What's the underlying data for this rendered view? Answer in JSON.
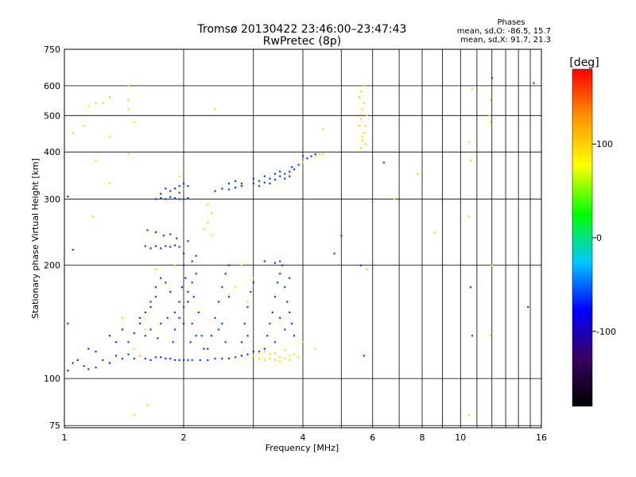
{
  "chart_data": {
    "type": "scatter",
    "title": "Tromsø 20130422 23:46:00–23:47:43",
    "subtitle": "RwPretec (8p)",
    "xlabel": "Frequency [MHz]",
    "ylabel": "Stationary phase Virtual Height [km]",
    "x_scale": "log",
    "y_scale": "log",
    "xlim": [
      1,
      16
    ],
    "ylim": [
      74,
      750
    ],
    "x_ticks": [
      1,
      2,
      4,
      6,
      8,
      10,
      16
    ],
    "x_tick_labels": [
      "1",
      "2",
      "4",
      "6",
      "8",
      "10",
      "16"
    ],
    "x_gridlines": [
      1,
      2,
      3,
      4,
      5,
      6,
      7,
      8,
      9,
      10,
      11,
      12,
      13,
      14,
      15,
      16
    ],
    "y_ticks": [
      75,
      100,
      200,
      300,
      400,
      500,
      600,
      750
    ],
    "y_tick_labels": [
      "75",
      "100",
      "200",
      "300",
      "400",
      "500",
      "600",
      "750"
    ],
    "grid": true,
    "legend": {
      "position": "top-right",
      "heading": "Phases",
      "lines": [
        "mean, sd,O:  -86.5, 15.7",
        "mean, sd,X:  91.7, 21.3"
      ]
    },
    "colorbar": {
      "label": "[deg]",
      "range": [
        -180,
        180
      ],
      "ticks": [
        100,
        0,
        -100
      ],
      "tick_labels": [
        "100",
        "0",
        "-100"
      ],
      "stops": [
        "#000000",
        "#3b0060",
        "#0000ff",
        "#00c8ff",
        "#00ff00",
        "#ffff00",
        "#ff9600",
        "#ff0000"
      ]
    },
    "series": [
      {
        "mode": "O",
        "color": "#0a3cff",
        "points": [
          [
            1.02,
            105
          ],
          [
            1.05,
            110
          ],
          [
            1.08,
            112
          ],
          [
            1.12,
            108
          ],
          [
            1.15,
            106
          ],
          [
            1.2,
            107
          ],
          [
            1.25,
            112
          ],
          [
            1.3,
            110
          ],
          [
            1.35,
            115
          ],
          [
            1.4,
            113
          ],
          [
            1.45,
            116
          ],
          [
            1.5,
            113
          ],
          [
            1.55,
            115
          ],
          [
            1.6,
            113
          ],
          [
            1.65,
            112
          ],
          [
            1.7,
            114
          ],
          [
            1.75,
            114
          ],
          [
            1.8,
            113
          ],
          [
            1.85,
            113
          ],
          [
            1.9,
            112
          ],
          [
            1.95,
            112
          ],
          [
            2.0,
            112
          ],
          [
            2.05,
            112
          ],
          [
            2.1,
            112
          ],
          [
            2.2,
            112
          ],
          [
            2.3,
            112
          ],
          [
            2.4,
            113
          ],
          [
            2.5,
            113
          ],
          [
            2.6,
            113
          ],
          [
            2.7,
            114
          ],
          [
            2.8,
            115
          ],
          [
            2.9,
            116
          ],
          [
            3.0,
            118
          ],
          [
            3.1,
            118
          ],
          [
            1.45,
            125
          ],
          [
            1.5,
            132
          ],
          [
            1.55,
            140
          ],
          [
            1.6,
            150
          ],
          [
            1.65,
            160
          ],
          [
            1.7,
            175
          ],
          [
            1.75,
            185
          ],
          [
            1.55,
            145
          ],
          [
            1.6,
            130
          ],
          [
            1.65,
            155
          ],
          [
            1.7,
            165
          ],
          [
            1.75,
            140
          ],
          [
            1.8,
            180
          ],
          [
            1.85,
            170
          ],
          [
            1.9,
            150
          ],
          [
            1.95,
            160
          ],
          [
            1.65,
            135
          ],
          [
            1.72,
            128
          ],
          [
            1.82,
            145
          ],
          [
            1.88,
            125
          ],
          [
            1.9,
            135
          ],
          [
            1.95,
            145
          ],
          [
            2.0,
            155
          ],
          [
            2.05,
            170
          ],
          [
            2.1,
            180
          ],
          [
            2.15,
            190
          ],
          [
            2.0,
            200
          ],
          [
            2.05,
            160
          ],
          [
            2.1,
            140
          ],
          [
            2.15,
            130
          ],
          [
            1.98,
            175
          ],
          [
            2.02,
            185
          ],
          [
            2.08,
            125
          ],
          [
            2.12,
            165
          ],
          [
            2.18,
            150
          ],
          [
            2.22,
            130
          ],
          [
            2.25,
            120
          ],
          [
            2.0,
            140
          ],
          [
            2.1,
            205
          ],
          [
            2.3,
            120
          ],
          [
            2.35,
            130
          ],
          [
            2.4,
            145
          ],
          [
            2.45,
            160
          ],
          [
            2.5,
            175
          ],
          [
            2.55,
            190
          ],
          [
            2.6,
            200
          ],
          [
            2.5,
            140
          ],
          [
            2.55,
            125
          ],
          [
            2.45,
            135
          ],
          [
            2.6,
            165
          ],
          [
            2.8,
            125
          ],
          [
            2.85,
            140
          ],
          [
            2.9,
            155
          ],
          [
            2.95,
            170
          ],
          [
            3.0,
            180
          ],
          [
            2.9,
            130
          ],
          [
            3.2,
            120
          ],
          [
            3.25,
            130
          ],
          [
            3.3,
            140
          ],
          [
            3.35,
            150
          ],
          [
            3.4,
            165
          ],
          [
            3.45,
            180
          ],
          [
            3.5,
            190
          ],
          [
            3.55,
            200
          ],
          [
            3.6,
            175
          ],
          [
            3.65,
            160
          ],
          [
            3.7,
            150
          ],
          [
            3.75,
            140
          ],
          [
            3.8,
            130
          ],
          [
            3.5,
            145
          ],
          [
            3.4,
            125
          ],
          [
            3.6,
            135
          ],
          [
            3.7,
            185
          ],
          [
            1.7,
            300
          ],
          [
            1.75,
            302
          ],
          [
            1.8,
            300
          ],
          [
            1.85,
            304
          ],
          [
            1.9,
            302
          ],
          [
            1.95,
            300
          ],
          [
            2.0,
            300
          ],
          [
            2.05,
            302
          ],
          [
            1.85,
            315
          ],
          [
            1.9,
            320
          ],
          [
            1.95,
            325
          ],
          [
            2.0,
            330
          ],
          [
            2.05,
            325
          ],
          [
            1.75,
            310
          ],
          [
            1.8,
            320
          ],
          [
            1.95,
            312
          ],
          [
            2.4,
            315
          ],
          [
            2.5,
            320
          ],
          [
            2.6,
            318
          ],
          [
            2.7,
            322
          ],
          [
            2.8,
            325
          ],
          [
            2.6,
            330
          ],
          [
            2.7,
            335
          ],
          [
            2.8,
            330
          ],
          [
            3.0,
            330
          ],
          [
            3.1,
            335
          ],
          [
            3.2,
            332
          ],
          [
            3.3,
            340
          ],
          [
            3.4,
            338
          ],
          [
            3.5,
            345
          ],
          [
            3.6,
            350
          ],
          [
            3.7,
            355
          ],
          [
            3.8,
            360
          ],
          [
            3.0,
            340
          ],
          [
            3.2,
            345
          ],
          [
            3.3,
            330
          ],
          [
            3.5,
            355
          ],
          [
            3.6,
            340
          ],
          [
            3.75,
            365
          ],
          [
            3.9,
            370
          ],
          [
            3.1,
            325
          ],
          [
            3.4,
            350
          ],
          [
            3.7,
            345
          ],
          [
            4.0,
            390
          ],
          [
            4.1,
            385
          ],
          [
            4.2,
            390
          ],
          [
            4.3,
            395
          ],
          [
            1.6,
            225
          ],
          [
            1.65,
            222
          ],
          [
            1.7,
            225
          ],
          [
            1.75,
            222
          ],
          [
            1.8,
            225
          ],
          [
            1.85,
            224
          ],
          [
            1.9,
            226
          ],
          [
            1.95,
            224
          ],
          [
            1.62,
            248
          ],
          [
            1.7,
            245
          ],
          [
            1.78,
            240
          ],
          [
            1.85,
            242
          ],
          [
            1.92,
            236
          ],
          [
            3.2,
            205
          ],
          [
            3.4,
            203
          ],
          [
            3.5,
            205
          ],
          [
            2.0,
            215
          ],
          [
            2.05,
            232
          ],
          [
            2.15,
            212
          ],
          [
            1.15,
            120
          ],
          [
            1.2,
            118
          ],
          [
            1.3,
            130
          ],
          [
            1.35,
            125
          ],
          [
            1.4,
            135
          ],
          [
            1.02,
            140
          ],
          [
            1.05,
            220
          ],
          [
            1.02,
            305
          ],
          [
            4.8,
            215
          ],
          [
            5.0,
            240
          ],
          [
            5.6,
            200
          ],
          [
            5.7,
            115
          ],
          [
            6.4,
            375
          ],
          [
            10.6,
            175
          ],
          [
            10.7,
            130
          ],
          [
            12.0,
            630
          ],
          [
            14.8,
            155
          ],
          [
            15.3,
            610
          ]
        ]
      },
      {
        "mode": "X",
        "color": "#e6e600",
        "points": [
          [
            3.0,
            115
          ],
          [
            3.1,
            113
          ],
          [
            3.2,
            112
          ],
          [
            3.3,
            113
          ],
          [
            3.4,
            112
          ],
          [
            3.5,
            114
          ],
          [
            3.6,
            113
          ],
          [
            3.7,
            115
          ],
          [
            3.8,
            116
          ],
          [
            3.2,
            118
          ],
          [
            3.4,
            117
          ],
          [
            3.6,
            119
          ],
          [
            3.7,
            112
          ],
          [
            3.5,
            111
          ],
          [
            3.9,
            114
          ],
          [
            3.1,
            117
          ],
          [
            3.3,
            116
          ],
          [
            5.6,
            410
          ],
          [
            5.65,
            430
          ],
          [
            5.7,
            450
          ],
          [
            5.75,
            470
          ],
          [
            5.6,
            490
          ],
          [
            5.65,
            520
          ],
          [
            5.7,
            540
          ],
          [
            5.55,
            560
          ],
          [
            5.6,
            580
          ],
          [
            5.7,
            600
          ],
          [
            5.65,
            440
          ],
          [
            5.75,
            420
          ],
          [
            5.55,
            470
          ],
          [
            5.8,
            500
          ],
          [
            4.3,
            390
          ],
          [
            4.4,
            395
          ],
          [
            4.0,
            375
          ],
          [
            4.5,
            395
          ],
          [
            1.15,
            530
          ],
          [
            1.2,
            540
          ],
          [
            1.3,
            560
          ],
          [
            1.45,
            550
          ],
          [
            1.12,
            470
          ],
          [
            1.3,
            440
          ],
          [
            1.5,
            480
          ],
          [
            1.45,
            520
          ],
          [
            1.2,
            380
          ],
          [
            1.7,
            195
          ],
          [
            1.9,
            200
          ],
          [
            2.3,
            260
          ],
          [
            2.35,
            275
          ],
          [
            2.3,
            290
          ],
          [
            2.25,
            250
          ],
          [
            1.5,
            120
          ],
          [
            1.6,
            135
          ],
          [
            1.4,
            145
          ],
          [
            2.9,
            160
          ],
          [
            3.0,
            185
          ],
          [
            2.8,
            200
          ],
          [
            2.4,
            520
          ],
          [
            4.0,
            125
          ],
          [
            4.3,
            120
          ],
          [
            1.25,
            540
          ],
          [
            1.05,
            450
          ],
          [
            1.45,
            600
          ],
          [
            1.18,
            270
          ],
          [
            1.55,
            115
          ],
          [
            1.62,
            85
          ],
          [
            1.5,
            80
          ],
          [
            1.3,
            330
          ],
          [
            1.45,
            395
          ],
          [
            1.95,
            345
          ],
          [
            2.35,
            240
          ],
          [
            2.7,
            175
          ],
          [
            10.5,
            270
          ],
          [
            10.6,
            380
          ],
          [
            11.8,
            500
          ],
          [
            11.9,
            480
          ],
          [
            12.0,
            200
          ],
          [
            10.5,
            80
          ],
          [
            10.5,
            425
          ],
          [
            11.9,
            550
          ],
          [
            11.9,
            130
          ],
          [
            10.7,
            590
          ],
          [
            4.5,
            460
          ],
          [
            5.8,
            195
          ],
          [
            6.8,
            300
          ],
          [
            7.8,
            350
          ],
          [
            8.6,
            245
          ]
        ]
      }
    ]
  }
}
